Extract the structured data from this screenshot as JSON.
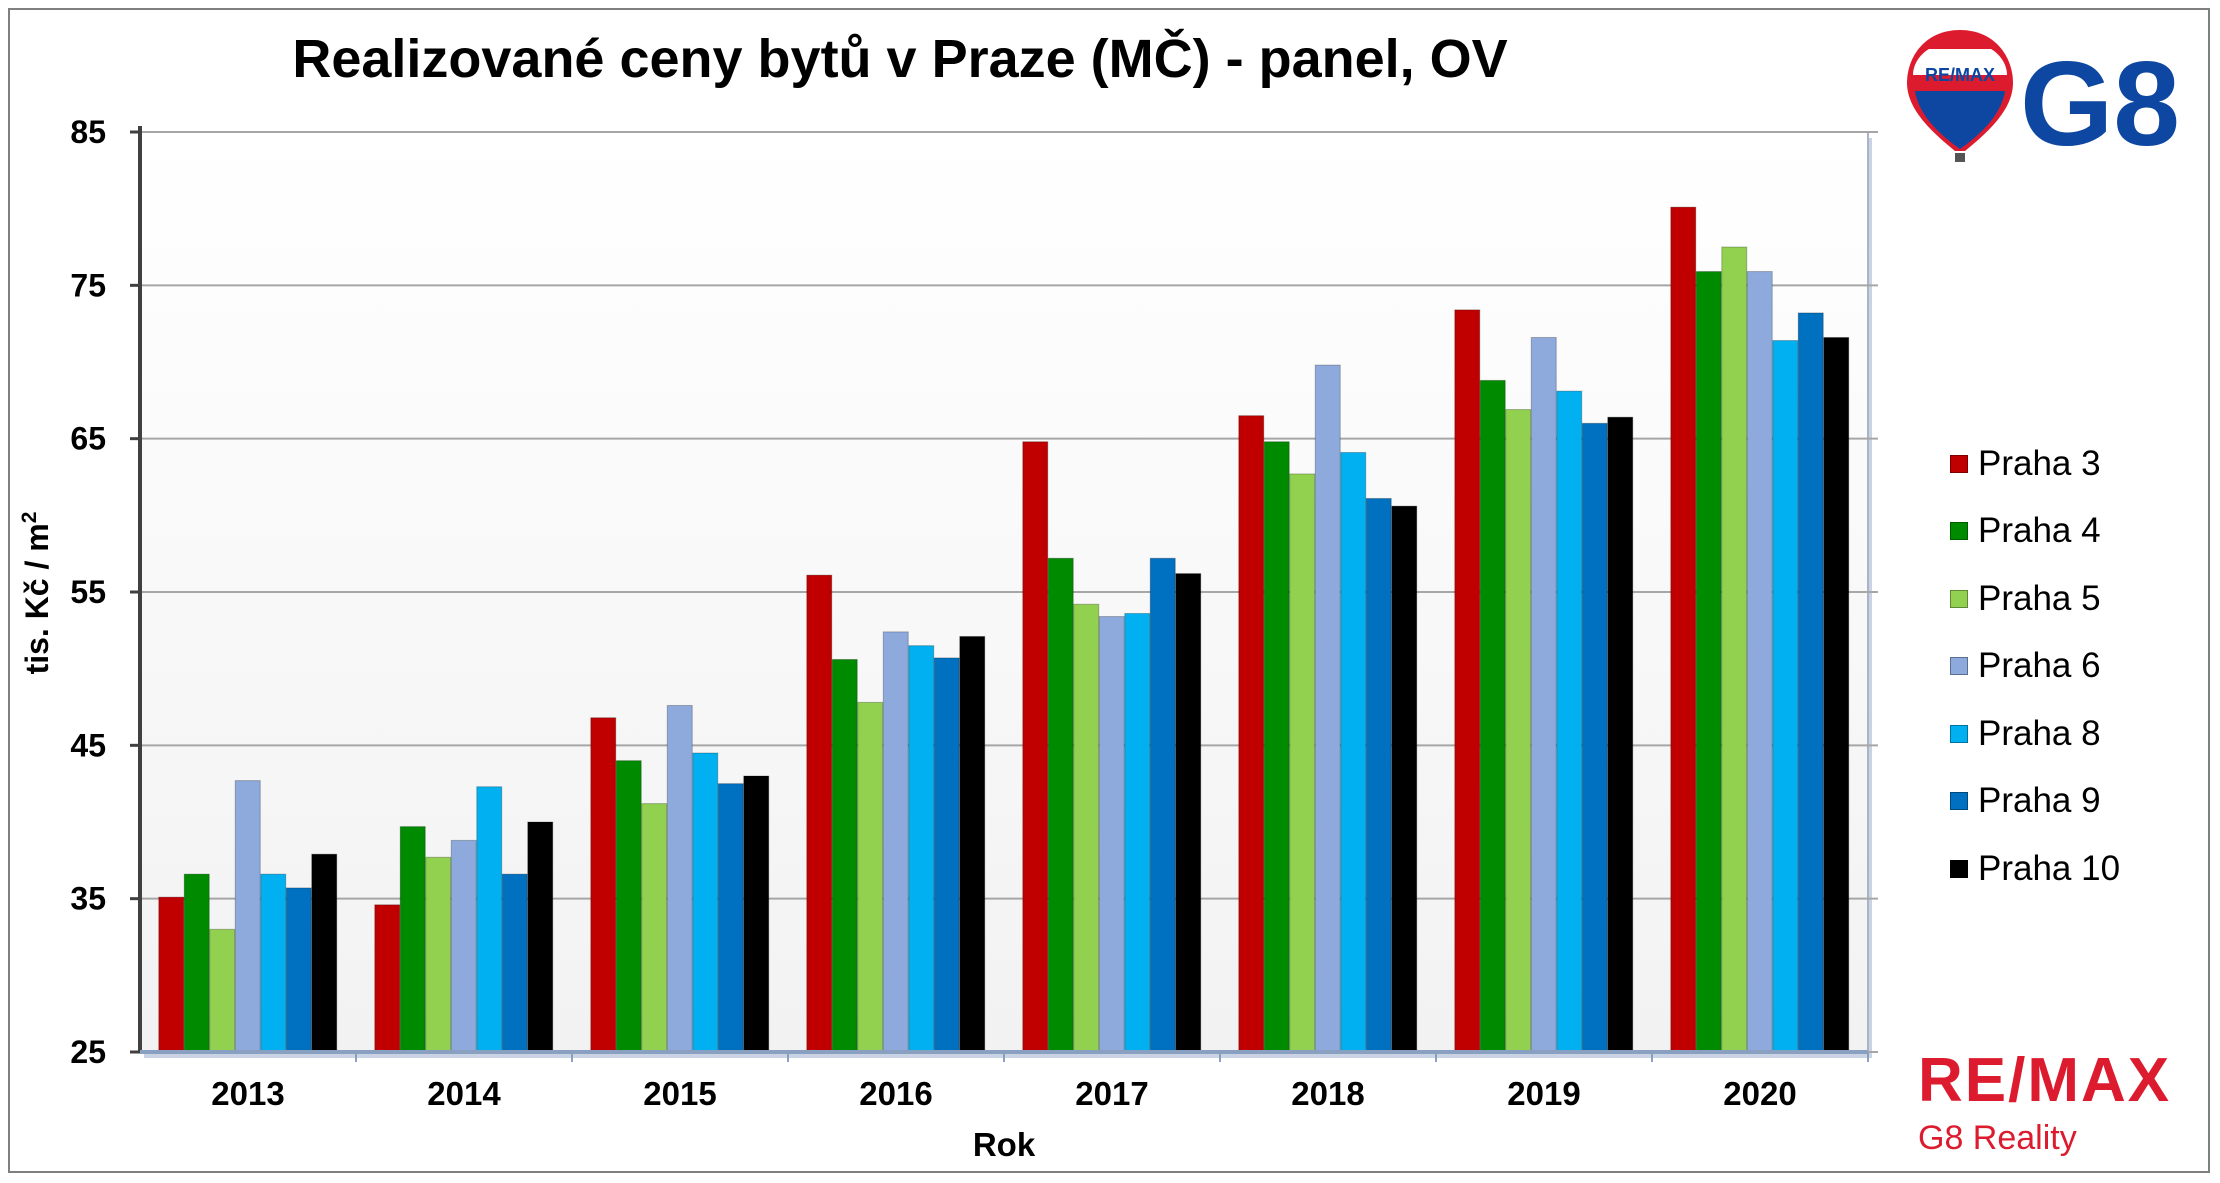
{
  "title": "Realizované ceny bytů v Praze (MČ) - panel, OV",
  "logo": {
    "balloon_text": "RE/MAX",
    "brand": "G8",
    "bottom_word": "RE/MAX",
    "bottom_sub": "G8 Reality"
  },
  "colors": {
    "Praha 3": "#c00000",
    "Praha 4": "#008a00",
    "Praha 5": "#92d050",
    "Praha 6": "#8ea9db",
    "Praha 8": "#00b0f0",
    "Praha 9": "#0070c0",
    "Praha 10": "#000000",
    "brand_red": "#dc1c2e",
    "brand_blue": "#0d47a1"
  },
  "chart_data": {
    "type": "bar",
    "title": "Realizované ceny bytů v Praze (MČ) - panel, OV",
    "xlabel": "Rok",
    "ylabel": "tis. Kč / m²",
    "ylim": [
      25,
      85
    ],
    "yticks": [
      25,
      35,
      45,
      55,
      65,
      75,
      85
    ],
    "grid": true,
    "legend_position": "right",
    "categories": [
      "2013",
      "2014",
      "2015",
      "2016",
      "2017",
      "2018",
      "2019",
      "2020"
    ],
    "series": [
      {
        "name": "Praha 3",
        "values": [
          35.1,
          34.6,
          46.8,
          56.1,
          64.8,
          66.5,
          73.4,
          80.1
        ]
      },
      {
        "name": "Praha 4",
        "values": [
          36.6,
          39.7,
          44.0,
          50.6,
          57.2,
          64.8,
          68.8,
          75.9
        ]
      },
      {
        "name": "Praha 5",
        "values": [
          33.0,
          37.7,
          41.2,
          47.8,
          54.2,
          62.7,
          66.9,
          77.5
        ]
      },
      {
        "name": "Praha 6",
        "values": [
          42.7,
          38.8,
          47.6,
          52.4,
          53.4,
          69.8,
          71.6,
          75.9
        ]
      },
      {
        "name": "Praha 8",
        "values": [
          36.6,
          42.3,
          44.5,
          51.5,
          53.6,
          64.1,
          68.1,
          71.4
        ]
      },
      {
        "name": "Praha 9",
        "values": [
          35.7,
          36.6,
          42.5,
          50.7,
          57.2,
          61.1,
          66.0,
          73.2
        ]
      },
      {
        "name": "Praha 10",
        "values": [
          37.9,
          40.0,
          43.0,
          52.1,
          56.2,
          60.6,
          66.4,
          71.6
        ]
      }
    ]
  }
}
